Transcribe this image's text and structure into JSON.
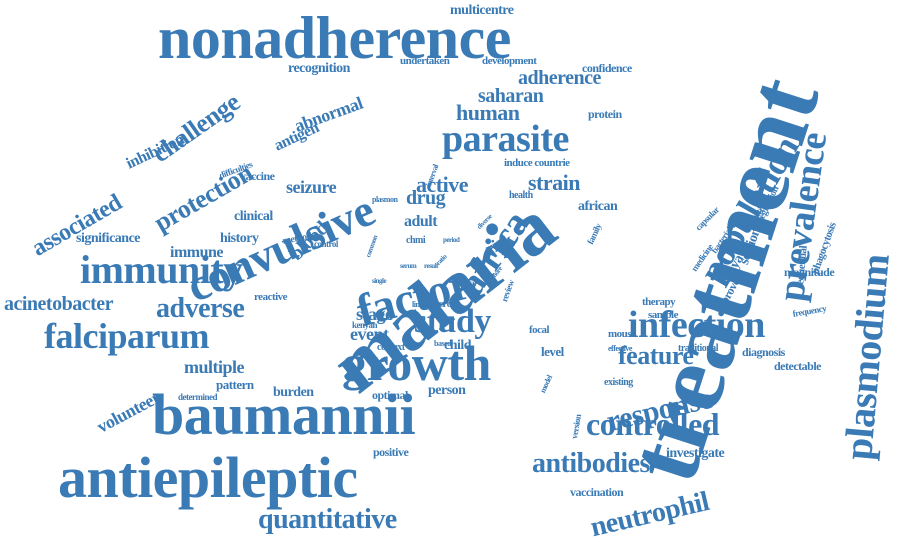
{
  "title": "",
  "colors": {
    "word": "#3a7ab5",
    "background": "#ffffff"
  },
  "words": [
    {
      "text": "treatment"
    },
    {
      "text": "malaria"
    },
    {
      "text": "nonadherence"
    },
    {
      "text": "baumannii"
    },
    {
      "text": "antiepileptic"
    },
    {
      "text": "convulsive"
    },
    {
      "text": "growth"
    },
    {
      "text": "factor"
    },
    {
      "text": "immunity"
    },
    {
      "text": "plasmodium"
    },
    {
      "text": "population"
    },
    {
      "text": "infection"
    },
    {
      "text": "prevalence"
    },
    {
      "text": "parasite"
    },
    {
      "text": "falciparum"
    },
    {
      "text": "africa"
    },
    {
      "text": "study"
    },
    {
      "text": "controlled"
    },
    {
      "text": "response"
    },
    {
      "text": "antibodies"
    },
    {
      "text": "neutrophil"
    },
    {
      "text": "quantitative"
    },
    {
      "text": "adverse"
    },
    {
      "text": "feature"
    },
    {
      "text": "challenge"
    },
    {
      "text": "protection"
    },
    {
      "text": "associated"
    },
    {
      "text": "human"
    },
    {
      "text": "saharan"
    },
    {
      "text": "adherence"
    },
    {
      "text": "active"
    },
    {
      "text": "strain"
    },
    {
      "text": "drug"
    },
    {
      "text": "blood"
    },
    {
      "text": "seizure"
    },
    {
      "text": "acinetobacter"
    },
    {
      "text": "volunteer"
    },
    {
      "text": "multiple"
    },
    {
      "text": "event"
    },
    {
      "text": "stage"
    },
    {
      "text": "risk"
    },
    {
      "text": "abnormal"
    },
    {
      "text": "antigen"
    },
    {
      "text": "inhibition"
    },
    {
      "text": "recognition"
    },
    {
      "text": "multicentre"
    },
    {
      "text": "undertaken"
    },
    {
      "text": "development"
    },
    {
      "text": "confidence"
    },
    {
      "text": "protein"
    },
    {
      "text": "induce countrie"
    },
    {
      "text": "clinical"
    },
    {
      "text": "immune"
    },
    {
      "text": "history"
    },
    {
      "text": "significance"
    },
    {
      "text": "adult"
    },
    {
      "text": "african"
    },
    {
      "text": "kenya"
    },
    {
      "text": "sectional"
    },
    {
      "text": "magnitude"
    },
    {
      "text": "diagnosis"
    },
    {
      "text": "detectable"
    },
    {
      "text": "investigate"
    },
    {
      "text": "vaccination"
    },
    {
      "text": "positive"
    },
    {
      "text": "optimal"
    },
    {
      "text": "person"
    },
    {
      "text": "burden"
    },
    {
      "text": "pattern"
    },
    {
      "text": "child"
    },
    {
      "text": "level"
    },
    {
      "text": "mouse"
    },
    {
      "text": "focal"
    },
    {
      "text": "cross"
    },
    {
      "text": "aed"
    },
    {
      "text": "approved"
    },
    {
      "text": "sequential"
    },
    {
      "text": "phagocytosis"
    },
    {
      "text": "regression"
    },
    {
      "text": "objective"
    },
    {
      "text": "capsular"
    },
    {
      "text": "medicine"
    },
    {
      "text": "bacterial"
    },
    {
      "text": "therapy"
    },
    {
      "text": "sample"
    },
    {
      "text": "traditional"
    },
    {
      "text": "existing"
    },
    {
      "text": "effective"
    },
    {
      "text": "frequency"
    },
    {
      "text": "vaccine"
    },
    {
      "text": "reactive"
    },
    {
      "text": "kenyan"
    },
    {
      "text": "context"
    },
    {
      "text": "based"
    },
    {
      "text": "determined"
    },
    {
      "text": "method"
    },
    {
      "text": "control"
    },
    {
      "text": "difficulties"
    },
    {
      "text": "plasmon"
    },
    {
      "text": "health"
    },
    {
      "text": "chmi"
    },
    {
      "text": "linked"
    },
    {
      "text": "family"
    },
    {
      "text": "review"
    },
    {
      "text": "case"
    },
    {
      "text": "version"
    },
    {
      "text": "model"
    },
    {
      "text": "single"
    },
    {
      "text": "serum"
    },
    {
      "text": "result"
    },
    {
      "text": "period"
    },
    {
      "text": "common"
    },
    {
      "text": "interval"
    },
    {
      "text": "diverse"
    },
    {
      "text": "ratio"
    },
    {
      "text": "more"
    }
  ]
}
